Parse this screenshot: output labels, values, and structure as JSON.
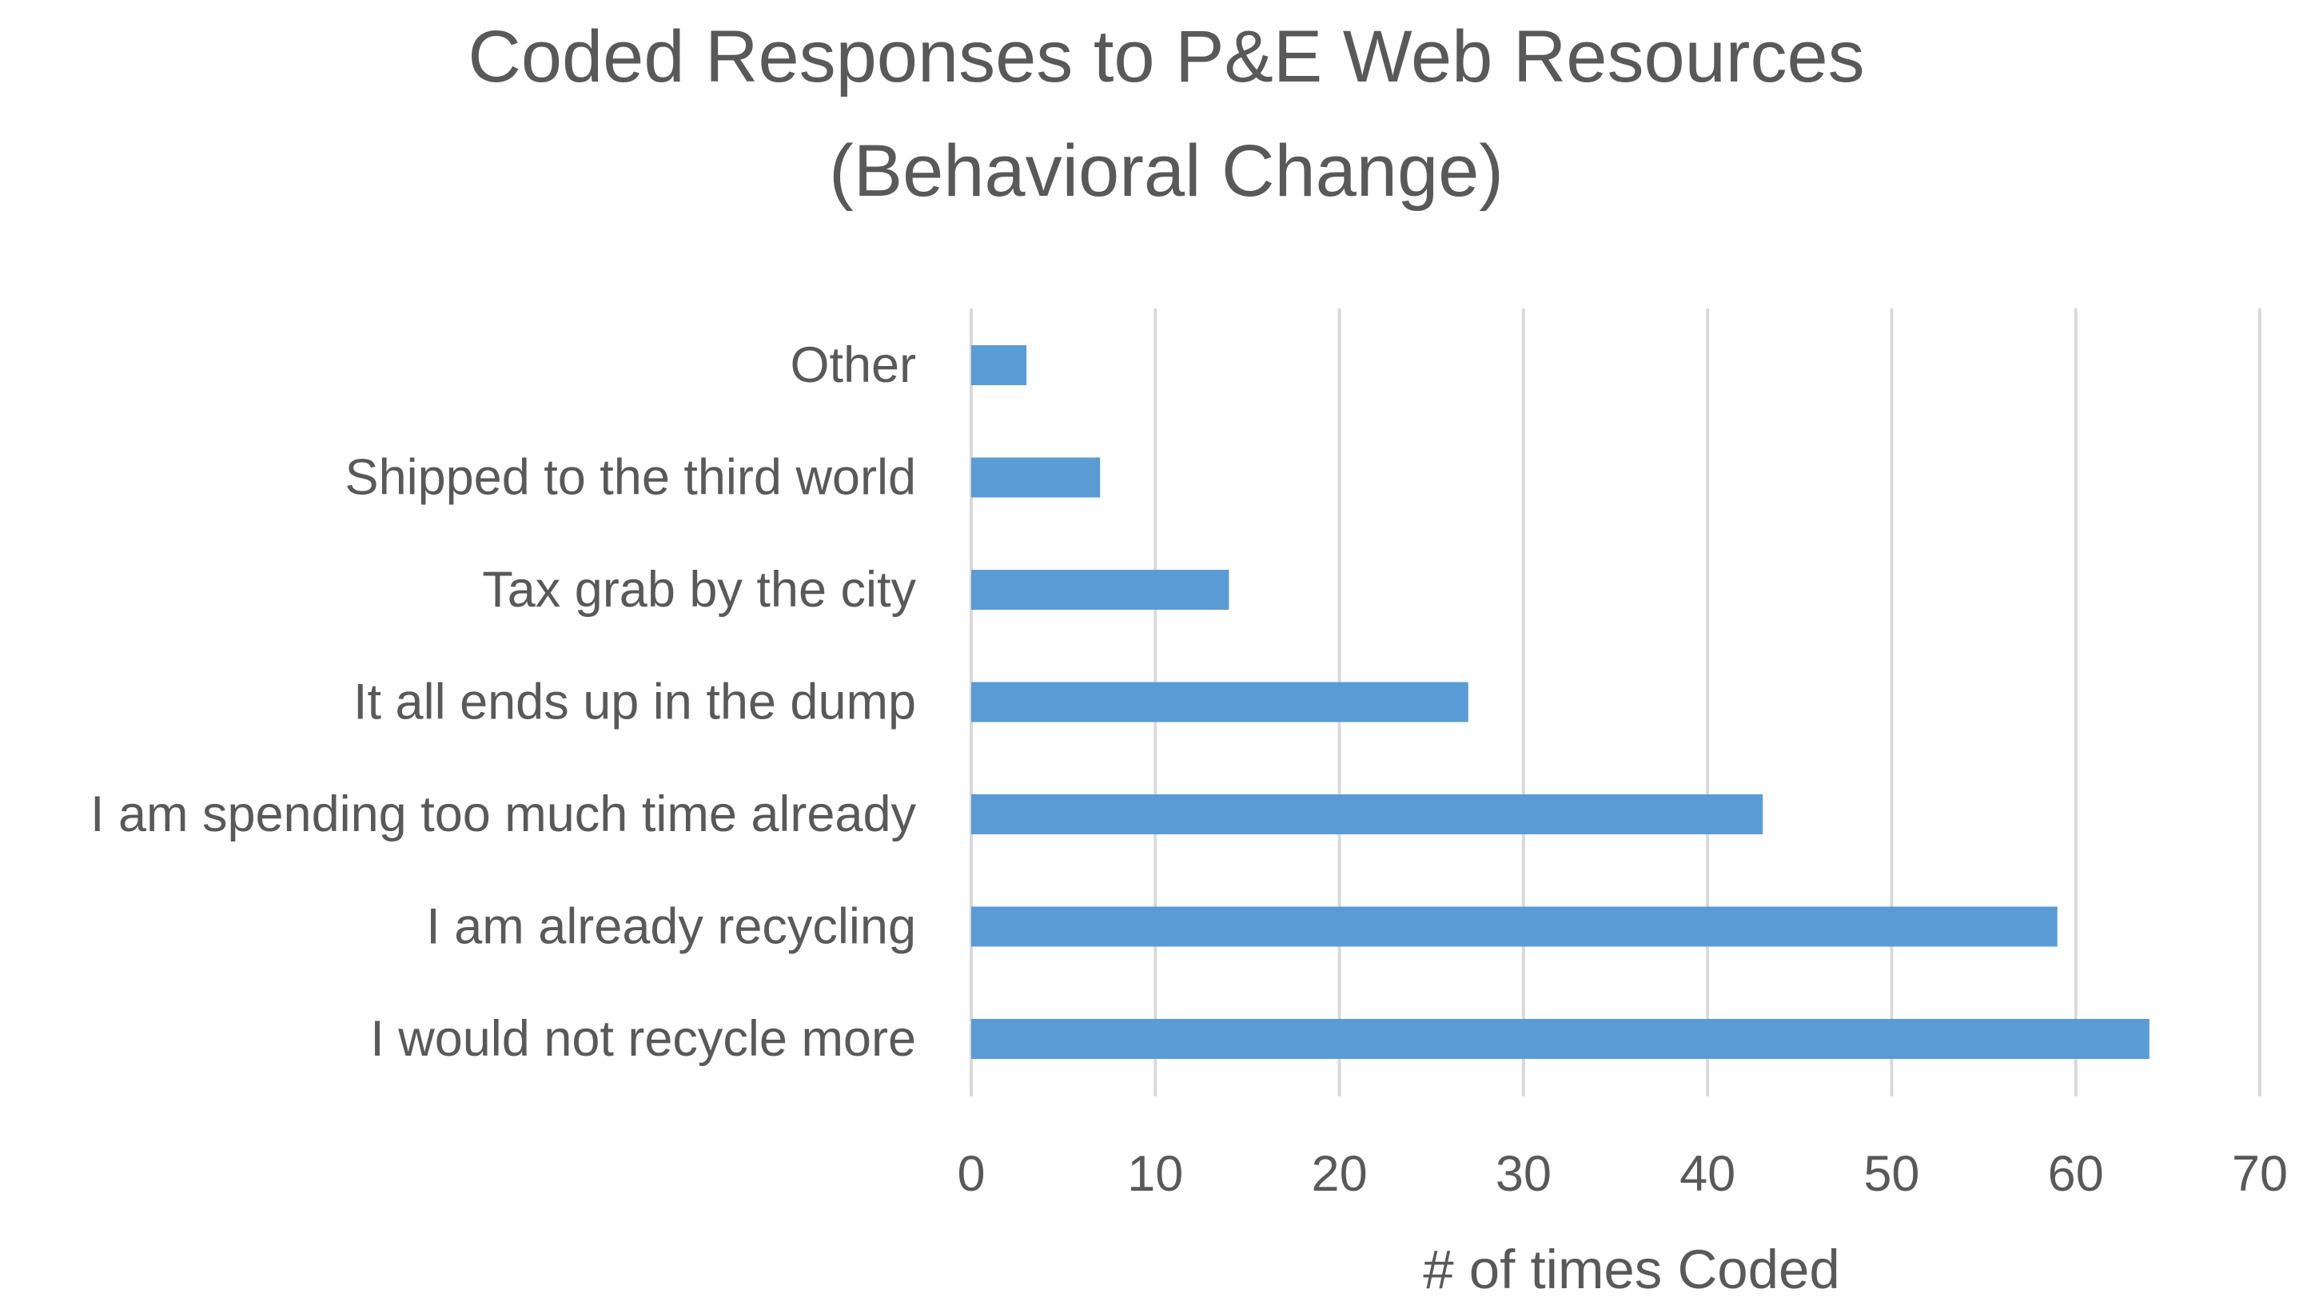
{
  "chart_data": {
    "type": "bar",
    "orientation": "horizontal",
    "title": [
      "Coded Responses to P&E Web Resources",
      "(Behavioral Change)"
    ],
    "categories": [
      "Other",
      "Shipped to the third world",
      "Tax grab by the city",
      "It all ends up in the dump",
      "I am spending too much time already",
      "I am already recycling",
      "I would not recycle more"
    ],
    "values": [
      3,
      7,
      14,
      27,
      43,
      59,
      64
    ],
    "xlabel": "# of times Coded",
    "ylabel": "",
    "xlim": [
      0,
      70
    ],
    "xticks": [
      "0",
      "10",
      "20",
      "30",
      "40",
      "50",
      "60",
      "70"
    ],
    "grid": true,
    "legend": "none",
    "bar_color": "#5b9bd5"
  }
}
